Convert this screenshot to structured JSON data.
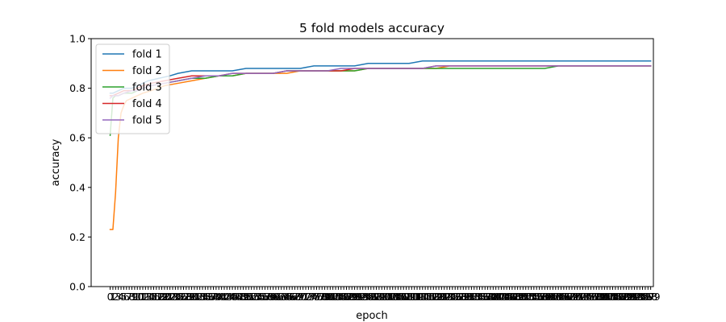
{
  "chart_data": {
    "type": "line",
    "title": "5 fold models accuracy",
    "xlabel": "epoch",
    "ylabel": "accuracy",
    "xlim": [
      -7,
      200
    ],
    "ylim": [
      0.0,
      1.0
    ],
    "yticks": [
      "0.0",
      "0.2",
      "0.4",
      "0.6",
      "0.8",
      "1.0"
    ],
    "x_tick_start": 0,
    "x_tick_end": 199,
    "grid": false,
    "legend_position": "top-left",
    "series": [
      {
        "name": "fold 1",
        "color": "#1f77b4",
        "x": [
          0,
          1,
          3,
          5,
          8,
          10,
          12,
          14,
          18,
          22,
          25,
          30,
          35,
          40,
          45,
          50,
          55,
          60,
          65,
          70,
          75,
          80,
          85,
          90,
          95,
          100,
          105,
          110,
          115,
          120,
          125,
          130,
          135,
          140,
          145,
          150,
          155,
          160,
          165,
          170,
          175,
          180,
          185,
          190,
          195,
          199
        ],
        "values": [
          0.78,
          0.78,
          0.79,
          0.8,
          0.8,
          0.81,
          0.82,
          0.83,
          0.84,
          0.85,
          0.86,
          0.87,
          0.87,
          0.87,
          0.87,
          0.88,
          0.88,
          0.88,
          0.88,
          0.88,
          0.89,
          0.89,
          0.89,
          0.89,
          0.9,
          0.9,
          0.9,
          0.9,
          0.91,
          0.91,
          0.91,
          0.91,
          0.91,
          0.91,
          0.91,
          0.91,
          0.91,
          0.91,
          0.91,
          0.91,
          0.91,
          0.91,
          0.91,
          0.91,
          0.91,
          0.91
        ]
      },
      {
        "name": "fold 2",
        "color": "#ff7f0e",
        "x": [
          0,
          1,
          2,
          3,
          4,
          5,
          6,
          8,
          10,
          12,
          15,
          20,
          25,
          30,
          35,
          40,
          45,
          50,
          55,
          60,
          65,
          70,
          75,
          80,
          85,
          90,
          95,
          100,
          105,
          110,
          115,
          120,
          125,
          130,
          135,
          140,
          145,
          150,
          155,
          160,
          165,
          170,
          175,
          180,
          185,
          190,
          195,
          199
        ],
        "values": [
          0.23,
          0.23,
          0.38,
          0.6,
          0.7,
          0.73,
          0.75,
          0.76,
          0.77,
          0.78,
          0.79,
          0.81,
          0.82,
          0.83,
          0.84,
          0.85,
          0.85,
          0.86,
          0.86,
          0.86,
          0.86,
          0.87,
          0.87,
          0.87,
          0.87,
          0.87,
          0.88,
          0.88,
          0.88,
          0.88,
          0.88,
          0.88,
          0.89,
          0.89,
          0.89,
          0.89,
          0.89,
          0.89,
          0.89,
          0.89,
          0.89,
          0.89,
          0.89,
          0.89,
          0.89,
          0.89,
          0.89,
          0.89
        ]
      },
      {
        "name": "fold 3",
        "color": "#2ca02c",
        "x": [
          0,
          1,
          2,
          3,
          5,
          8,
          10,
          12,
          15,
          20,
          25,
          30,
          35,
          40,
          45,
          50,
          55,
          60,
          65,
          70,
          75,
          80,
          85,
          90,
          95,
          100,
          105,
          110,
          115,
          120,
          125,
          130,
          135,
          140,
          145,
          150,
          155,
          160,
          165,
          170,
          175,
          180,
          185,
          190,
          195,
          199
        ],
        "values": [
          0.61,
          0.76,
          0.77,
          0.77,
          0.78,
          0.78,
          0.79,
          0.8,
          0.81,
          0.82,
          0.83,
          0.84,
          0.84,
          0.85,
          0.85,
          0.86,
          0.86,
          0.86,
          0.87,
          0.87,
          0.87,
          0.87,
          0.87,
          0.87,
          0.88,
          0.88,
          0.88,
          0.88,
          0.88,
          0.88,
          0.88,
          0.88,
          0.88,
          0.88,
          0.88,
          0.88,
          0.88,
          0.88,
          0.89,
          0.89,
          0.89,
          0.89,
          0.89,
          0.89,
          0.89,
          0.89
        ]
      },
      {
        "name": "fold 4",
        "color": "#d62728",
        "x": [
          0,
          1,
          3,
          5,
          8,
          10,
          12,
          15,
          20,
          25,
          30,
          35,
          40,
          45,
          50,
          55,
          60,
          65,
          70,
          75,
          80,
          85,
          90,
          95,
          100,
          105,
          110,
          115,
          120,
          125,
          130,
          135,
          140,
          145,
          150,
          155,
          160,
          165,
          170,
          175,
          180,
          185,
          190,
          195,
          199
        ],
        "values": [
          0.77,
          0.77,
          0.78,
          0.79,
          0.79,
          0.8,
          0.81,
          0.82,
          0.83,
          0.84,
          0.85,
          0.85,
          0.85,
          0.86,
          0.86,
          0.86,
          0.86,
          0.87,
          0.87,
          0.87,
          0.87,
          0.87,
          0.88,
          0.88,
          0.88,
          0.88,
          0.88,
          0.88,
          0.89,
          0.89,
          0.89,
          0.89,
          0.89,
          0.89,
          0.89,
          0.89,
          0.89,
          0.89,
          0.89,
          0.89,
          0.89,
          0.89,
          0.89,
          0.89,
          0.89
        ]
      },
      {
        "name": "fold 5",
        "color": "#9467bd",
        "x": [
          0,
          1,
          3,
          5,
          8,
          10,
          12,
          15,
          20,
          25,
          30,
          35,
          40,
          45,
          50,
          55,
          60,
          65,
          70,
          75,
          80,
          85,
          90,
          95,
          100,
          105,
          110,
          115,
          120,
          125,
          130,
          135,
          140,
          145,
          150,
          155,
          160,
          165,
          170,
          175,
          180,
          185,
          190,
          195,
          199
        ],
        "values": [
          0.76,
          0.77,
          0.77,
          0.78,
          0.79,
          0.79,
          0.8,
          0.81,
          0.82,
          0.83,
          0.84,
          0.85,
          0.85,
          0.86,
          0.86,
          0.86,
          0.86,
          0.87,
          0.87,
          0.87,
          0.87,
          0.88,
          0.88,
          0.88,
          0.88,
          0.88,
          0.88,
          0.88,
          0.89,
          0.89,
          0.89,
          0.89,
          0.89,
          0.89,
          0.89,
          0.89,
          0.89,
          0.89,
          0.89,
          0.89,
          0.89,
          0.89,
          0.89,
          0.89,
          0.89
        ]
      }
    ]
  }
}
